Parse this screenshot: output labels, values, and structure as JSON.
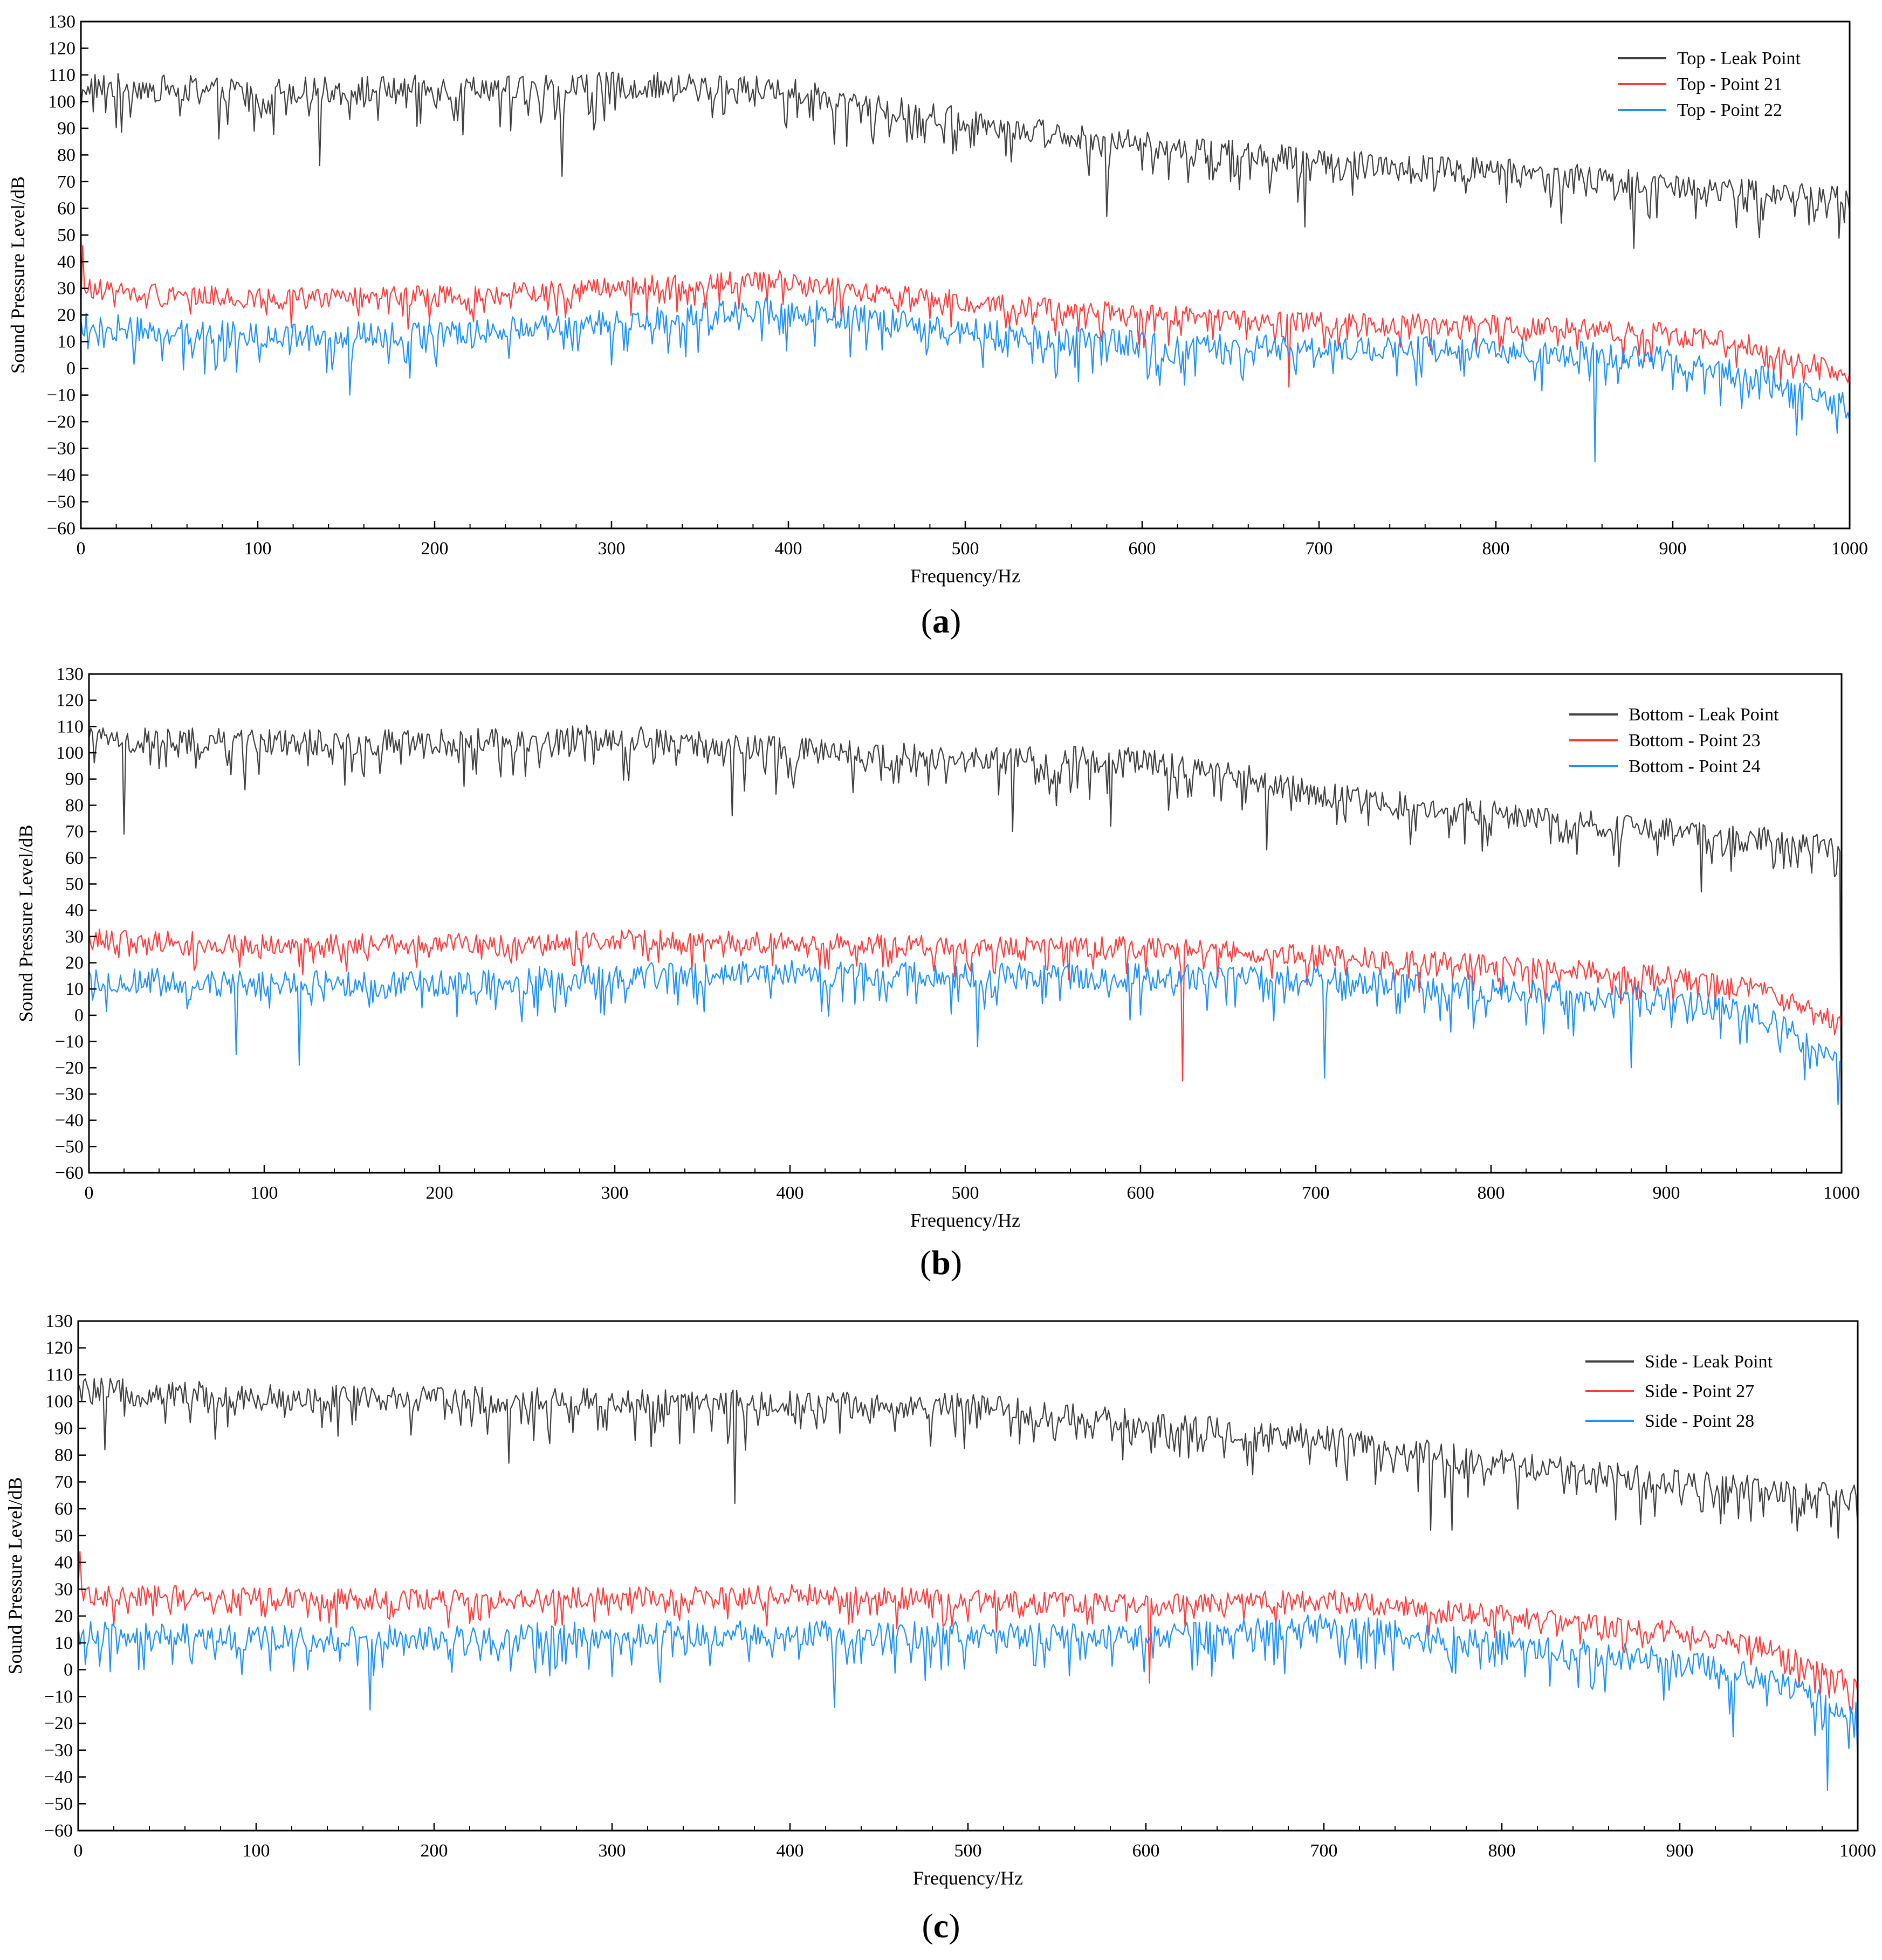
{
  "chart_data": [
    {
      "panel": "a",
      "type": "line",
      "xlabel": "Frequency/Hz",
      "ylabel": "Sound Pressure Level/dB",
      "xlim": [
        0,
        1000
      ],
      "ylim": [
        -60,
        130
      ],
      "xticks": [
        0,
        100,
        200,
        300,
        400,
        500,
        600,
        700,
        800,
        900,
        1000
      ],
      "yticks": [
        -60,
        -50,
        -40,
        -30,
        -20,
        -10,
        0,
        10,
        20,
        30,
        40,
        50,
        60,
        70,
        80,
        90,
        100,
        110,
        120,
        130
      ],
      "legend_position": "top-right",
      "caption": "a",
      "series": [
        {
          "name": "Top - Leak Point",
          "color": "#404040",
          "trend_x": [
            0,
            100,
            200,
            300,
            350,
            400,
            450,
            500,
            600,
            700,
            800,
            900,
            1000
          ],
          "trend_y": [
            106,
            104,
            105,
            106,
            106,
            104,
            98,
            93,
            84,
            78,
            74,
            69,
            63
          ],
          "spread": 5,
          "dip_depth": 14,
          "dips": [
            [
              78,
              86
            ],
            [
              135,
              76
            ],
            [
              272,
              72
            ],
            [
              580,
              57
            ],
            [
              692,
              53
            ],
            [
              878,
              45
            ]
          ]
        },
        {
          "name": "Top - Point 21",
          "color": "#ff3b3b",
          "trend_x": [
            0,
            100,
            200,
            300,
            350,
            400,
            450,
            500,
            600,
            700,
            800,
            900,
            950,
            1000
          ],
          "trend_y": [
            30,
            26,
            27,
            30,
            32,
            33,
            28,
            25,
            20,
            17,
            16,
            13,
            8,
            -3
          ],
          "spread": 4,
          "dip_depth": 9,
          "dips": [
            [
              1,
              46
            ],
            [
              683,
              -7
            ]
          ]
        },
        {
          "name": "Top - Point 22",
          "color": "#1e90ff",
          "trend_x": [
            0,
            100,
            200,
            300,
            350,
            400,
            450,
            500,
            600,
            700,
            800,
            900,
            950,
            1000
          ],
          "trend_y": [
            16,
            12,
            13,
            17,
            20,
            22,
            18,
            14,
            9,
            7,
            7,
            3,
            -3,
            -15
          ],
          "spread": 5,
          "dip_depth": 14,
          "dips": [
            [
              152,
              -10
            ],
            [
              856,
              -35
            ],
            [
              970,
              -25
            ]
          ]
        }
      ]
    },
    {
      "panel": "b",
      "type": "line",
      "xlabel": "Frequency/Hz",
      "ylabel": "Sound Pressure Level/dB",
      "xlim": [
        0,
        1000
      ],
      "ylim": [
        -60,
        130
      ],
      "xticks": [
        0,
        100,
        200,
        300,
        400,
        500,
        600,
        700,
        800,
        900,
        1000
      ],
      "yticks": [
        -60,
        -50,
        -40,
        -30,
        -20,
        -10,
        0,
        10,
        20,
        30,
        40,
        50,
        60,
        70,
        80,
        90,
        100,
        110,
        120,
        130
      ],
      "legend_position": "top-right",
      "caption": "b",
      "series": [
        {
          "name": "Bottom - Leak Point",
          "color": "#404040",
          "trend_x": [
            0,
            100,
            200,
            300,
            350,
            400,
            500,
            600,
            650,
            700,
            800,
            900,
            1000
          ],
          "trend_y": [
            105,
            104,
            104,
            106,
            103,
            101,
            98,
            97,
            93,
            84,
            77,
            70,
            64
          ],
          "spread": 5,
          "dip_depth": 14,
          "dips": [
            [
              20,
              69
            ],
            [
              367,
              76
            ],
            [
              527,
              70
            ],
            [
              583,
              72
            ],
            [
              672,
              63
            ],
            [
              920,
              47
            ],
            [
              1000,
              -60
            ]
          ]
        },
        {
          "name": "Bottom - Point 23",
          "color": "#ff3b3b",
          "trend_x": [
            0,
            100,
            200,
            300,
            400,
            500,
            600,
            700,
            800,
            900,
            950,
            1000
          ],
          "trend_y": [
            29,
            27,
            27,
            29,
            28,
            26,
            26,
            23,
            19,
            15,
            10,
            -3
          ],
          "spread": 4,
          "dip_depth": 9,
          "dips": [
            [
              624,
              -25
            ]
          ]
        },
        {
          "name": "Bottom - Point 24",
          "color": "#1e90ff",
          "trend_x": [
            0,
            100,
            200,
            300,
            400,
            500,
            600,
            700,
            800,
            900,
            950,
            1000
          ],
          "trend_y": [
            14,
            12,
            12,
            15,
            16,
            15,
            15,
            14,
            10,
            6,
            1,
            -18
          ],
          "spread": 5,
          "dip_depth": 14,
          "dips": [
            [
              84,
              -15
            ],
            [
              120,
              -19
            ],
            [
              507,
              -12
            ],
            [
              705,
              -24
            ],
            [
              880,
              -20
            ],
            [
              998,
              -34
            ]
          ]
        }
      ]
    },
    {
      "panel": "c",
      "type": "line",
      "xlabel": "Frequency/Hz",
      "ylabel": "Sound Pressure Level/dB",
      "xlim": [
        0,
        1000
      ],
      "ylim": [
        -60,
        130
      ],
      "xticks": [
        0,
        100,
        200,
        300,
        400,
        500,
        600,
        700,
        800,
        900,
        1000
      ],
      "yticks": [
        -60,
        -50,
        -40,
        -30,
        -20,
        -10,
        0,
        10,
        20,
        30,
        40,
        50,
        60,
        70,
        80,
        90,
        100,
        110,
        120,
        130
      ],
      "legend_position": "top-right",
      "caption": "c",
      "series": [
        {
          "name": "Side - Leak Point",
          "color": "#404040",
          "trend_x": [
            0,
            100,
            200,
            300,
            400,
            500,
            600,
            700,
            800,
            900,
            1000
          ],
          "trend_y": [
            104,
            102,
            101,
            100,
            99,
            98,
            92,
            86,
            77,
            70,
            64
          ],
          "spread": 5,
          "dip_depth": 14,
          "dips": [
            [
              15,
              82
            ],
            [
              242,
              77
            ],
            [
              369,
              62
            ],
            [
              760,
              52
            ],
            [
              772,
              52
            ],
            [
              989,
              49
            ]
          ]
        },
        {
          "name": "Side - Point 27",
          "color": "#ff3b3b",
          "trend_x": [
            0,
            100,
            200,
            300,
            400,
            500,
            600,
            700,
            800,
            900,
            950,
            1000
          ],
          "trend_y": [
            28,
            27,
            26,
            27,
            28,
            26,
            24,
            26,
            20,
            14,
            8,
            -6
          ],
          "spread": 4,
          "dip_depth": 9,
          "dips": [
            [
              1,
              44
            ],
            [
              602,
              -5
            ]
          ]
        },
        {
          "name": "Side - Point 28",
          "color": "#1e90ff",
          "trend_x": [
            0,
            100,
            200,
            300,
            400,
            500,
            600,
            700,
            800,
            900,
            950,
            1000
          ],
          "trend_y": [
            14,
            12,
            12,
            13,
            14,
            13,
            12,
            16,
            10,
            3,
            -3,
            -17
          ],
          "spread": 5,
          "dip_depth": 14,
          "dips": [
            [
              164,
              -15
            ],
            [
              425,
              -14
            ],
            [
              930,
              -25
            ],
            [
              983,
              -45
            ]
          ]
        }
      ]
    }
  ]
}
